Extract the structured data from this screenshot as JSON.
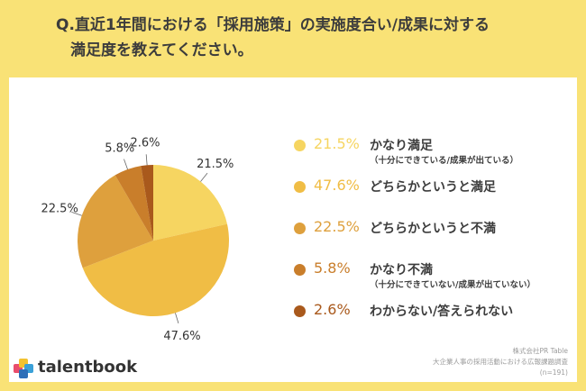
{
  "title": {
    "line1": "Q.直近1年間における「採用施策」の実施度合い/成果に対する",
    "line2": "満足度を教えてください。"
  },
  "chart_data": {
    "type": "pie",
    "slices": [
      {
        "label": "かなり満足",
        "sublabel": "（十分にできている/成果が出ている）",
        "value": 21.5,
        "value_label": "21.5%",
        "color": "#f6d561"
      },
      {
        "label": "どちらかというと満足",
        "sublabel": "",
        "value": 47.6,
        "value_label": "47.6%",
        "color": "#f0bd45"
      },
      {
        "label": "どちらかというと不満",
        "sublabel": "",
        "value": 22.5,
        "value_label": "22.5%",
        "color": "#dea03d"
      },
      {
        "label": "かなり不満",
        "sublabel": "（十分にできていない/成果が出ていない）",
        "value": 5.8,
        "value_label": "5.8%",
        "color": "#c97e2b"
      },
      {
        "label": "わからない/答えられない",
        "sublabel": "",
        "value": 2.6,
        "value_label": "2.6%",
        "color": "#a9591c"
      }
    ]
  },
  "source": {
    "line1": "株式会社PR Table",
    "line2": "大企業人事の採用活動における広報課題調査",
    "line3": "(n=191)"
  },
  "brand": {
    "name": "talentbook",
    "icon": "talentbook-logo-icon"
  }
}
